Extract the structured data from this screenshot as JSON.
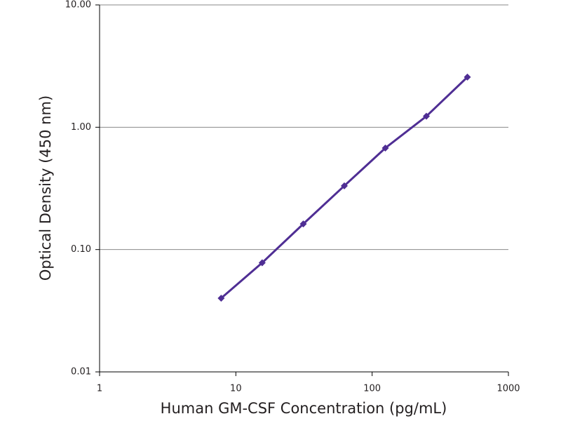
{
  "chart_data": {
    "type": "line",
    "x_label": "Human GM-CSF Concentration (pg/mL)",
    "y_label": "Optical Density (450 nm)",
    "x": [
      7.8,
      15.6,
      31.25,
      62.5,
      125,
      250,
      500
    ],
    "values": [
      0.04,
      0.078,
      0.162,
      0.332,
      0.676,
      1.23,
      2.57
    ],
    "color": "#4f2e94",
    "markers": true,
    "xscale": "log",
    "yscale": "log",
    "xlim": [
      1,
      1000
    ],
    "ylim": [
      0.01,
      10
    ],
    "xticks": [
      1,
      10,
      100,
      1000
    ],
    "yticks": [
      {
        "value": 0.01,
        "label": "0.01"
      },
      {
        "value": 0.1,
        "label": "0.10"
      },
      {
        "value": 1,
        "label": "1.00"
      },
      {
        "value": 10,
        "label": "10.00"
      }
    ],
    "grid": true
  }
}
